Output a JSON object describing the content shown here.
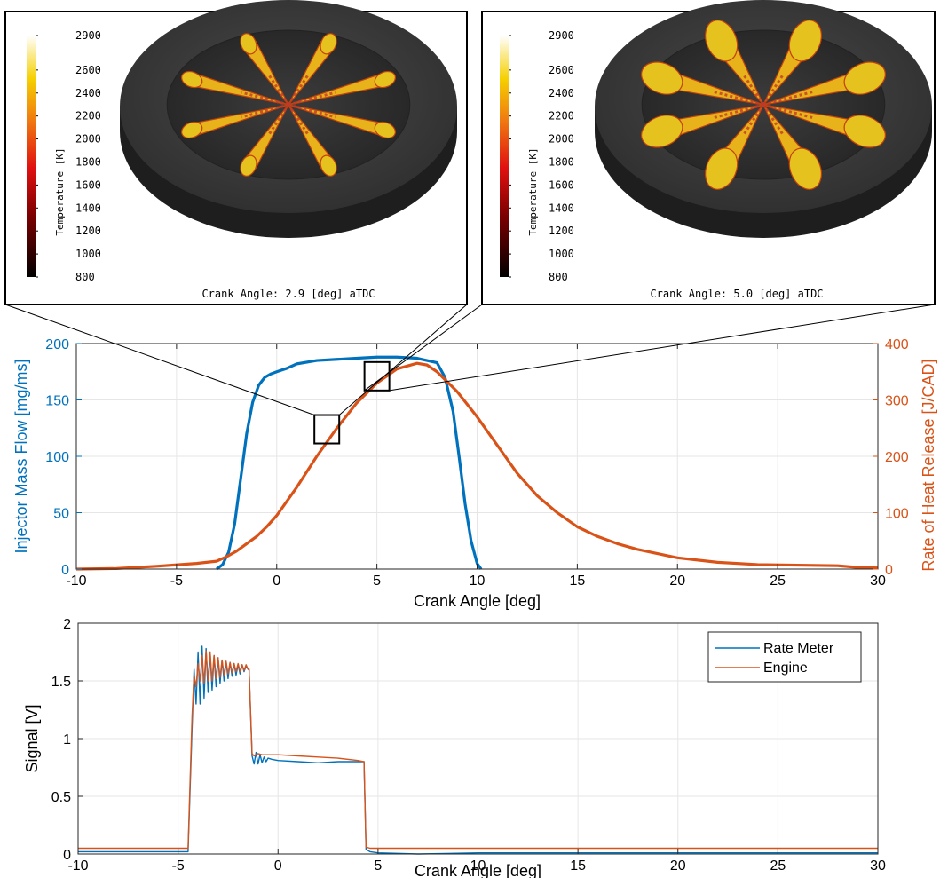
{
  "colors": {
    "blue": "#0072BD",
    "orange": "#D95319",
    "grid": "#e6e6e6",
    "disk": "#3a3a3a",
    "plume": "#e6b800"
  },
  "snapshots": [
    {
      "caption": "Crank Angle: 2.9 [deg] aTDC",
      "colorbar_title": "Temperature [K]",
      "colorbar_ticks": [
        "2900",
        "2600",
        "2400",
        "2200",
        "2000",
        "1800",
        "1600",
        "1400",
        "1200",
        "1000",
        "800"
      ],
      "crank_angle": 2.9
    },
    {
      "caption": "Crank Angle: 5.0 [deg] aTDC",
      "colorbar_title": "Temperature [K]",
      "colorbar_ticks": [
        "2900",
        "2600",
        "2400",
        "2200",
        "2000",
        "1800",
        "1600",
        "1400",
        "1200",
        "1000",
        "800"
      ],
      "crank_angle": 5.0
    }
  ],
  "chart_data": [
    {
      "type": "line",
      "xlabel": "Crank Angle [deg]",
      "ylabel_left": "Injector Mass Flow [mg/ms]",
      "ylabel_right": "Rate of Heat Release [J/CAD]",
      "xlim": [
        -10,
        30
      ],
      "ylim_left": [
        0,
        200
      ],
      "ylim_right": [
        0,
        400
      ],
      "xticks": [
        "-10",
        "-5",
        "0",
        "5",
        "10",
        "15",
        "20",
        "25",
        "30"
      ],
      "yticks_left": [
        "0",
        "50",
        "100",
        "150",
        "200"
      ],
      "yticks_right": [
        "0",
        "100",
        "200",
        "300",
        "400"
      ],
      "grid": true,
      "series": [
        {
          "axis": "left",
          "color": "#0072BD",
          "x": [
            -3.0,
            -2.7,
            -2.4,
            -2.1,
            -1.8,
            -1.5,
            -1.2,
            -0.9,
            -0.6,
            -0.3,
            0.0,
            0.5,
            1.0,
            2.0,
            3.0,
            4.0,
            5.0,
            6.0,
            7.0,
            8.0,
            8.4,
            8.8,
            9.1,
            9.4,
            9.7,
            10.0,
            10.2
          ],
          "y": [
            0,
            4,
            15,
            40,
            80,
            120,
            148,
            163,
            170,
            173,
            175,
            178,
            182,
            185,
            186,
            187,
            188,
            188,
            187,
            183,
            170,
            140,
            100,
            58,
            25,
            5,
            0
          ]
        },
        {
          "axis": "right",
          "color": "#D95319",
          "x": [
            -10,
            -8,
            -6,
            -4,
            -3,
            -2.5,
            -2,
            -1.5,
            -1,
            -0.5,
            0,
            1,
            2,
            3,
            4,
            5,
            6,
            7,
            7.5,
            8,
            9,
            10,
            11,
            12,
            13,
            14,
            15,
            16,
            17,
            18,
            20,
            22,
            24,
            26,
            28,
            29,
            30
          ],
          "y": [
            0,
            1,
            5,
            10,
            14,
            22,
            32,
            45,
            58,
            75,
            95,
            145,
            200,
            250,
            295,
            330,
            355,
            365,
            362,
            350,
            315,
            270,
            220,
            170,
            130,
            100,
            75,
            58,
            45,
            35,
            20,
            12,
            8,
            7,
            6,
            3,
            2
          ]
        }
      ],
      "boxes": [
        {
          "x": 2.5,
          "y": 124
        },
        {
          "x": 5.0,
          "y": 171
        }
      ]
    },
    {
      "type": "line",
      "xlabel": "Crank Angle [deg]",
      "ylabel": "Signal [V]",
      "xlim": [
        -10,
        30
      ],
      "ylim": [
        0,
        2
      ],
      "xticks": [
        "-10",
        "-5",
        "0",
        "5",
        "10",
        "15",
        "20",
        "25",
        "30"
      ],
      "yticks": [
        "0",
        "0.5",
        "1",
        "1.5",
        "2"
      ],
      "grid": true,
      "legend": "top-right",
      "series": [
        {
          "name": "Rate Meter",
          "color": "#0072BD",
          "x": [
            -10,
            -4.5,
            -4.3,
            -4.2,
            -4.1,
            -4.0,
            -3.9,
            -3.8,
            -3.7,
            -3.6,
            -3.5,
            -3.4,
            -3.3,
            -3.2,
            -3.1,
            -3.0,
            -2.9,
            -2.8,
            -2.7,
            -2.6,
            -2.5,
            -2.4,
            -2.3,
            -2.2,
            -2.1,
            -2.0,
            -1.9,
            -1.8,
            -1.7,
            -1.6,
            -1.5,
            -1.45,
            -1.3,
            -1.2,
            -1.1,
            -1.0,
            -0.9,
            -0.8,
            -0.7,
            -0.6,
            -0.5,
            -0.3,
            0,
            1,
            2,
            3,
            4,
            4.3,
            4.4,
            4.6,
            5,
            7,
            10,
            20,
            30
          ],
          "y": [
            0.02,
            0.02,
            1.1,
            1.6,
            1.3,
            1.75,
            1.3,
            1.8,
            1.35,
            1.78,
            1.4,
            1.75,
            1.42,
            1.72,
            1.45,
            1.7,
            1.48,
            1.68,
            1.5,
            1.67,
            1.52,
            1.66,
            1.54,
            1.65,
            1.55,
            1.64,
            1.56,
            1.64,
            1.58,
            1.63,
            1.6,
            1.6,
            0.85,
            0.78,
            0.88,
            0.78,
            0.86,
            0.79,
            0.84,
            0.8,
            0.83,
            0.82,
            0.81,
            0.8,
            0.79,
            0.8,
            0.8,
            0.8,
            0.04,
            0.02,
            0.01,
            0.0,
            0.01,
            0.01,
            0.01
          ]
        },
        {
          "name": "Engine",
          "color": "#D95319",
          "x": [
            -10,
            -4.5,
            -4.3,
            -4.2,
            -4.1,
            -4.0,
            -3.9,
            -3.8,
            -3.7,
            -3.6,
            -3.5,
            -3.4,
            -3.3,
            -3.2,
            -3.1,
            -3.0,
            -2.9,
            -2.8,
            -2.7,
            -2.6,
            -2.5,
            -2.4,
            -2.3,
            -2.2,
            -2.1,
            -2.0,
            -1.9,
            -1.8,
            -1.7,
            -1.6,
            -1.5,
            -1.45,
            -1.3,
            -1.2,
            -1.0,
            -0.8,
            -0.5,
            0,
            1,
            2,
            3,
            4,
            4.3,
            4.4,
            4.6,
            10,
            20,
            30
          ],
          "y": [
            0.05,
            0.05,
            1.2,
            1.55,
            1.45,
            1.65,
            1.5,
            1.72,
            1.48,
            1.76,
            1.5,
            1.75,
            1.5,
            1.72,
            1.52,
            1.7,
            1.53,
            1.68,
            1.55,
            1.67,
            1.56,
            1.66,
            1.57,
            1.65,
            1.58,
            1.65,
            1.58,
            1.64,
            1.59,
            1.64,
            1.6,
            1.6,
            0.87,
            0.85,
            0.87,
            0.86,
            0.86,
            0.86,
            0.85,
            0.84,
            0.83,
            0.81,
            0.8,
            0.06,
            0.05,
            0.05,
            0.05,
            0.05
          ]
        }
      ]
    }
  ]
}
